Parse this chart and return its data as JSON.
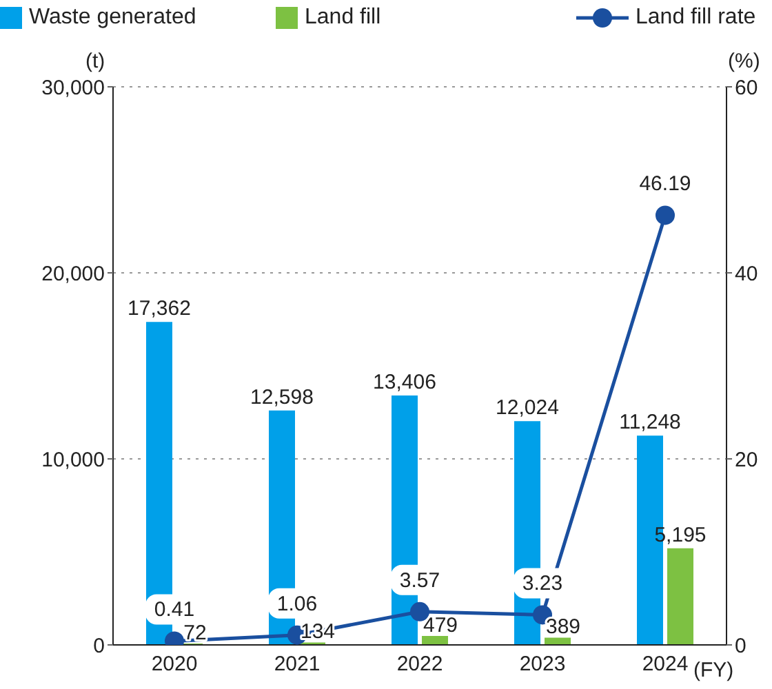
{
  "chart_data": {
    "type": "bar",
    "ylabel": "(t)",
    "y2label": "(%)",
    "xlabel": "(FY)",
    "categories": [
      "2020",
      "2021",
      "2022",
      "2023",
      "2024"
    ],
    "series": [
      {
        "name": "Waste generated",
        "color": "#00a0e9",
        "values": [
          17362,
          12598,
          13406,
          12024,
          11248
        ],
        "value_labels": [
          "17,362",
          "12,598",
          "13,406",
          "12,024",
          "11,248"
        ]
      },
      {
        "name": "Land fill",
        "color": "#7dc142",
        "values": [
          72,
          134,
          479,
          389,
          5195
        ],
        "value_labels": [
          "72",
          "134",
          "479",
          "389",
          "5,195"
        ]
      },
      {
        "name": "Land fill rate",
        "type": "line",
        "axis": "y2",
        "color": "#1a4f9f",
        "values": [
          0.41,
          1.06,
          3.57,
          3.23,
          46.19
        ],
        "value_labels": [
          "0.41",
          "1.06",
          "3.57",
          "3.23",
          "46.19"
        ]
      }
    ],
    "ylim": [
      0,
      30000
    ],
    "yticks": [
      0,
      {
        "value": 10000,
        "label": "10,000"
      },
      {
        "value": 20000,
        "label": "20,000"
      },
      {
        "value": 30000,
        "label": "30,000"
      }
    ],
    "y2lim": [
      0,
      60
    ],
    "y2ticks": [
      0,
      20,
      40,
      60
    ],
    "grid": "y",
    "legend": "top",
    "marker": "circle",
    "line_style": "solid"
  }
}
